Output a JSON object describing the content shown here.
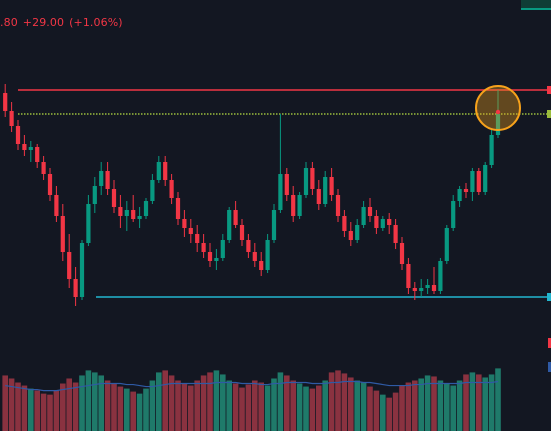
{
  "header": {
    "last_value_fragment": ".80",
    "change_abs": "+29.00",
    "change_pct": "(+1.06%)"
  },
  "colors": {
    "background": "#131722",
    "bullish": "#089981",
    "bearish": "#f23645",
    "bull_volume": "#1f7a6a",
    "bear_volume": "#8a3240",
    "ma_line": "#2f5aa5",
    "resistance_line": "#f23645",
    "dotted_level": "#9bbd3c",
    "support_line": "#22b6cf",
    "highlight_circle": "#f7a21b"
  },
  "chart_data": {
    "type": "candlestick",
    "y_domain": [
      0,
      1
    ],
    "levels": [
      {
        "name": "resistance",
        "value": 0.9,
        "style": "solid",
        "color": "#f23645"
      },
      {
        "name": "dotted-level",
        "value": 0.82,
        "style": "dotted",
        "color": "#9bbd3c"
      },
      {
        "name": "support",
        "value": 0.21,
        "style": "solid",
        "color": "#22b6cf"
      }
    ],
    "ohlc": [
      [
        0.89,
        0.92,
        0.81,
        0.83
      ],
      [
        0.83,
        0.86,
        0.76,
        0.78
      ],
      [
        0.78,
        0.8,
        0.7,
        0.72
      ],
      [
        0.72,
        0.75,
        0.68,
        0.7
      ],
      [
        0.7,
        0.73,
        0.66,
        0.71
      ],
      [
        0.71,
        0.72,
        0.64,
        0.66
      ],
      [
        0.66,
        0.68,
        0.6,
        0.62
      ],
      [
        0.62,
        0.64,
        0.53,
        0.55
      ],
      [
        0.55,
        0.58,
        0.46,
        0.48
      ],
      [
        0.48,
        0.52,
        0.33,
        0.36
      ],
      [
        0.36,
        0.42,
        0.24,
        0.27
      ],
      [
        0.27,
        0.31,
        0.18,
        0.21
      ],
      [
        0.21,
        0.4,
        0.2,
        0.39
      ],
      [
        0.39,
        0.55,
        0.38,
        0.52
      ],
      [
        0.52,
        0.61,
        0.49,
        0.58
      ],
      [
        0.58,
        0.66,
        0.55,
        0.63
      ],
      [
        0.63,
        0.66,
        0.55,
        0.57
      ],
      [
        0.57,
        0.6,
        0.49,
        0.51
      ],
      [
        0.51,
        0.55,
        0.44,
        0.48
      ],
      [
        0.48,
        0.53,
        0.43,
        0.5
      ],
      [
        0.5,
        0.55,
        0.46,
        0.47
      ],
      [
        0.47,
        0.51,
        0.44,
        0.48
      ],
      [
        0.48,
        0.54,
        0.47,
        0.53
      ],
      [
        0.53,
        0.62,
        0.52,
        0.6
      ],
      [
        0.6,
        0.68,
        0.59,
        0.66
      ],
      [
        0.66,
        0.68,
        0.58,
        0.6
      ],
      [
        0.6,
        0.62,
        0.52,
        0.54
      ],
      [
        0.54,
        0.56,
        0.45,
        0.47
      ],
      [
        0.47,
        0.5,
        0.41,
        0.44
      ],
      [
        0.44,
        0.47,
        0.39,
        0.42
      ],
      [
        0.42,
        0.45,
        0.36,
        0.39
      ],
      [
        0.39,
        0.42,
        0.34,
        0.36
      ],
      [
        0.36,
        0.39,
        0.31,
        0.33
      ],
      [
        0.33,
        0.37,
        0.3,
        0.34
      ],
      [
        0.34,
        0.42,
        0.33,
        0.4
      ],
      [
        0.4,
        0.51,
        0.39,
        0.5
      ],
      [
        0.5,
        0.53,
        0.44,
        0.45
      ],
      [
        0.45,
        0.47,
        0.38,
        0.4
      ],
      [
        0.4,
        0.42,
        0.34,
        0.36
      ],
      [
        0.36,
        0.39,
        0.31,
        0.33
      ],
      [
        0.33,
        0.36,
        0.28,
        0.3
      ],
      [
        0.3,
        0.42,
        0.29,
        0.4
      ],
      [
        0.4,
        0.52,
        0.39,
        0.5
      ],
      [
        0.5,
        0.82,
        0.49,
        0.62
      ],
      [
        0.62,
        0.64,
        0.53,
        0.55
      ],
      [
        0.55,
        0.58,
        0.46,
        0.48
      ],
      [
        0.48,
        0.56,
        0.47,
        0.55
      ],
      [
        0.55,
        0.66,
        0.54,
        0.64
      ],
      [
        0.64,
        0.66,
        0.55,
        0.57
      ],
      [
        0.57,
        0.6,
        0.5,
        0.52
      ],
      [
        0.52,
        0.63,
        0.51,
        0.61
      ],
      [
        0.61,
        0.64,
        0.53,
        0.55
      ],
      [
        0.55,
        0.57,
        0.46,
        0.48
      ],
      [
        0.48,
        0.5,
        0.41,
        0.43
      ],
      [
        0.43,
        0.46,
        0.38,
        0.4
      ],
      [
        0.4,
        0.47,
        0.39,
        0.45
      ],
      [
        0.45,
        0.53,
        0.44,
        0.51
      ],
      [
        0.51,
        0.54,
        0.46,
        0.48
      ],
      [
        0.48,
        0.5,
        0.42,
        0.44
      ],
      [
        0.44,
        0.48,
        0.43,
        0.47
      ],
      [
        0.47,
        0.49,
        0.42,
        0.45
      ],
      [
        0.45,
        0.47,
        0.37,
        0.39
      ],
      [
        0.39,
        0.41,
        0.3,
        0.32
      ],
      [
        0.32,
        0.34,
        0.22,
        0.24
      ],
      [
        0.24,
        0.26,
        0.2,
        0.23
      ],
      [
        0.23,
        0.27,
        0.21,
        0.24
      ],
      [
        0.24,
        0.27,
        0.22,
        0.25
      ],
      [
        0.25,
        0.31,
        0.22,
        0.23
      ],
      [
        0.23,
        0.34,
        0.22,
        0.33
      ],
      [
        0.33,
        0.45,
        0.32,
        0.44
      ],
      [
        0.44,
        0.55,
        0.43,
        0.53
      ],
      [
        0.53,
        0.58,
        0.51,
        0.57
      ],
      [
        0.57,
        0.59,
        0.54,
        0.56
      ],
      [
        0.56,
        0.64,
        0.53,
        0.63
      ],
      [
        0.63,
        0.64,
        0.55,
        0.56
      ],
      [
        0.56,
        0.66,
        0.55,
        0.65
      ],
      [
        0.65,
        0.77,
        0.64,
        0.75
      ],
      [
        0.75,
        0.9,
        0.74,
        0.82
      ]
    ],
    "volume": [
      0.55,
      0.52,
      0.48,
      0.45,
      0.42,
      0.4,
      0.37,
      0.36,
      0.4,
      0.47,
      0.52,
      0.48,
      0.55,
      0.6,
      0.58,
      0.55,
      0.5,
      0.47,
      0.44,
      0.42,
      0.39,
      0.37,
      0.42,
      0.5,
      0.58,
      0.6,
      0.55,
      0.5,
      0.47,
      0.45,
      0.5,
      0.55,
      0.58,
      0.6,
      0.56,
      0.5,
      0.47,
      0.43,
      0.46,
      0.5,
      0.48,
      0.45,
      0.52,
      0.58,
      0.55,
      0.5,
      0.47,
      0.44,
      0.42,
      0.45,
      0.5,
      0.58,
      0.6,
      0.57,
      0.53,
      0.5,
      0.48,
      0.44,
      0.4,
      0.36,
      0.33,
      0.38,
      0.45,
      0.48,
      0.5,
      0.52,
      0.55,
      0.54,
      0.5,
      0.47,
      0.45,
      0.5,
      0.56,
      0.58,
      0.56,
      0.53,
      0.56,
      0.62
    ],
    "ma": [
      0.45,
      0.44,
      0.43,
      0.42,
      0.41,
      0.41,
      0.4,
      0.4,
      0.4,
      0.41,
      0.42,
      0.43,
      0.44,
      0.45,
      0.46,
      0.47,
      0.47,
      0.47,
      0.47,
      0.46,
      0.46,
      0.45,
      0.44,
      0.44,
      0.45,
      0.46,
      0.47,
      0.47,
      0.47,
      0.47,
      0.47,
      0.47,
      0.47,
      0.48,
      0.48,
      0.48,
      0.48,
      0.47,
      0.47,
      0.47,
      0.46,
      0.46,
      0.47,
      0.47,
      0.48,
      0.48,
      0.48,
      0.48,
      0.47,
      0.47,
      0.47,
      0.48,
      0.48,
      0.49,
      0.49,
      0.49,
      0.48,
      0.48,
      0.47,
      0.46,
      0.45,
      0.45,
      0.45,
      0.45,
      0.46,
      0.46,
      0.47,
      0.47,
      0.47,
      0.47,
      0.47,
      0.47,
      0.48,
      0.48,
      0.48,
      0.48,
      0.48,
      0.49
    ],
    "highlight": {
      "candle_index": 77,
      "value": 0.82
    }
  }
}
